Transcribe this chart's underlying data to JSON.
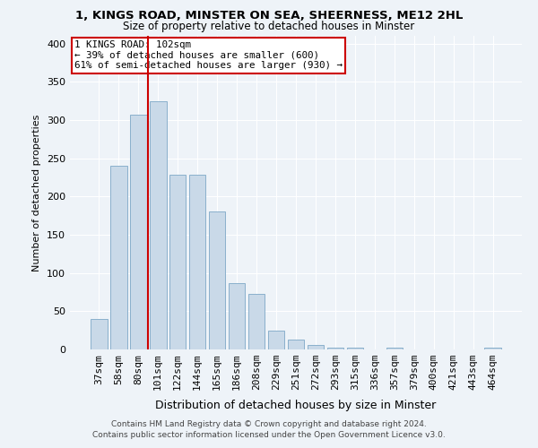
{
  "title1": "1, KINGS ROAD, MINSTER ON SEA, SHEERNESS, ME12 2HL",
  "title2": "Size of property relative to detached houses in Minster",
  "xlabel": "Distribution of detached houses by size in Minster",
  "ylabel": "Number of detached properties",
  "categories": [
    "37sqm",
    "58sqm",
    "80sqm",
    "101sqm",
    "122sqm",
    "144sqm",
    "165sqm",
    "186sqm",
    "208sqm",
    "229sqm",
    "251sqm",
    "272sqm",
    "293sqm",
    "315sqm",
    "336sqm",
    "357sqm",
    "379sqm",
    "400sqm",
    "421sqm",
    "443sqm",
    "464sqm"
  ],
  "values": [
    40,
    240,
    307,
    325,
    228,
    228,
    180,
    87,
    73,
    25,
    13,
    6,
    2,
    2,
    0,
    2,
    0,
    0,
    0,
    0,
    2
  ],
  "bar_color": "#c9d9e8",
  "bar_edge_color": "#8ab0cc",
  "vline_x_index": 2.5,
  "vline_color": "#cc0000",
  "annotation_text": "1 KINGS ROAD: 102sqm\n← 39% of detached houses are smaller (600)\n61% of semi-detached houses are larger (930) →",
  "annotation_box_color": "#ffffff",
  "annotation_box_edge": "#cc0000",
  "ylim": [
    0,
    410
  ],
  "yticks": [
    0,
    50,
    100,
    150,
    200,
    250,
    300,
    350,
    400
  ],
  "footer1": "Contains HM Land Registry data © Crown copyright and database right 2024.",
  "footer2": "Contains public sector information licensed under the Open Government Licence v3.0.",
  "bg_color": "#eef3f8",
  "plot_bg_color": "#eef3f8",
  "grid_color": "#ffffff"
}
